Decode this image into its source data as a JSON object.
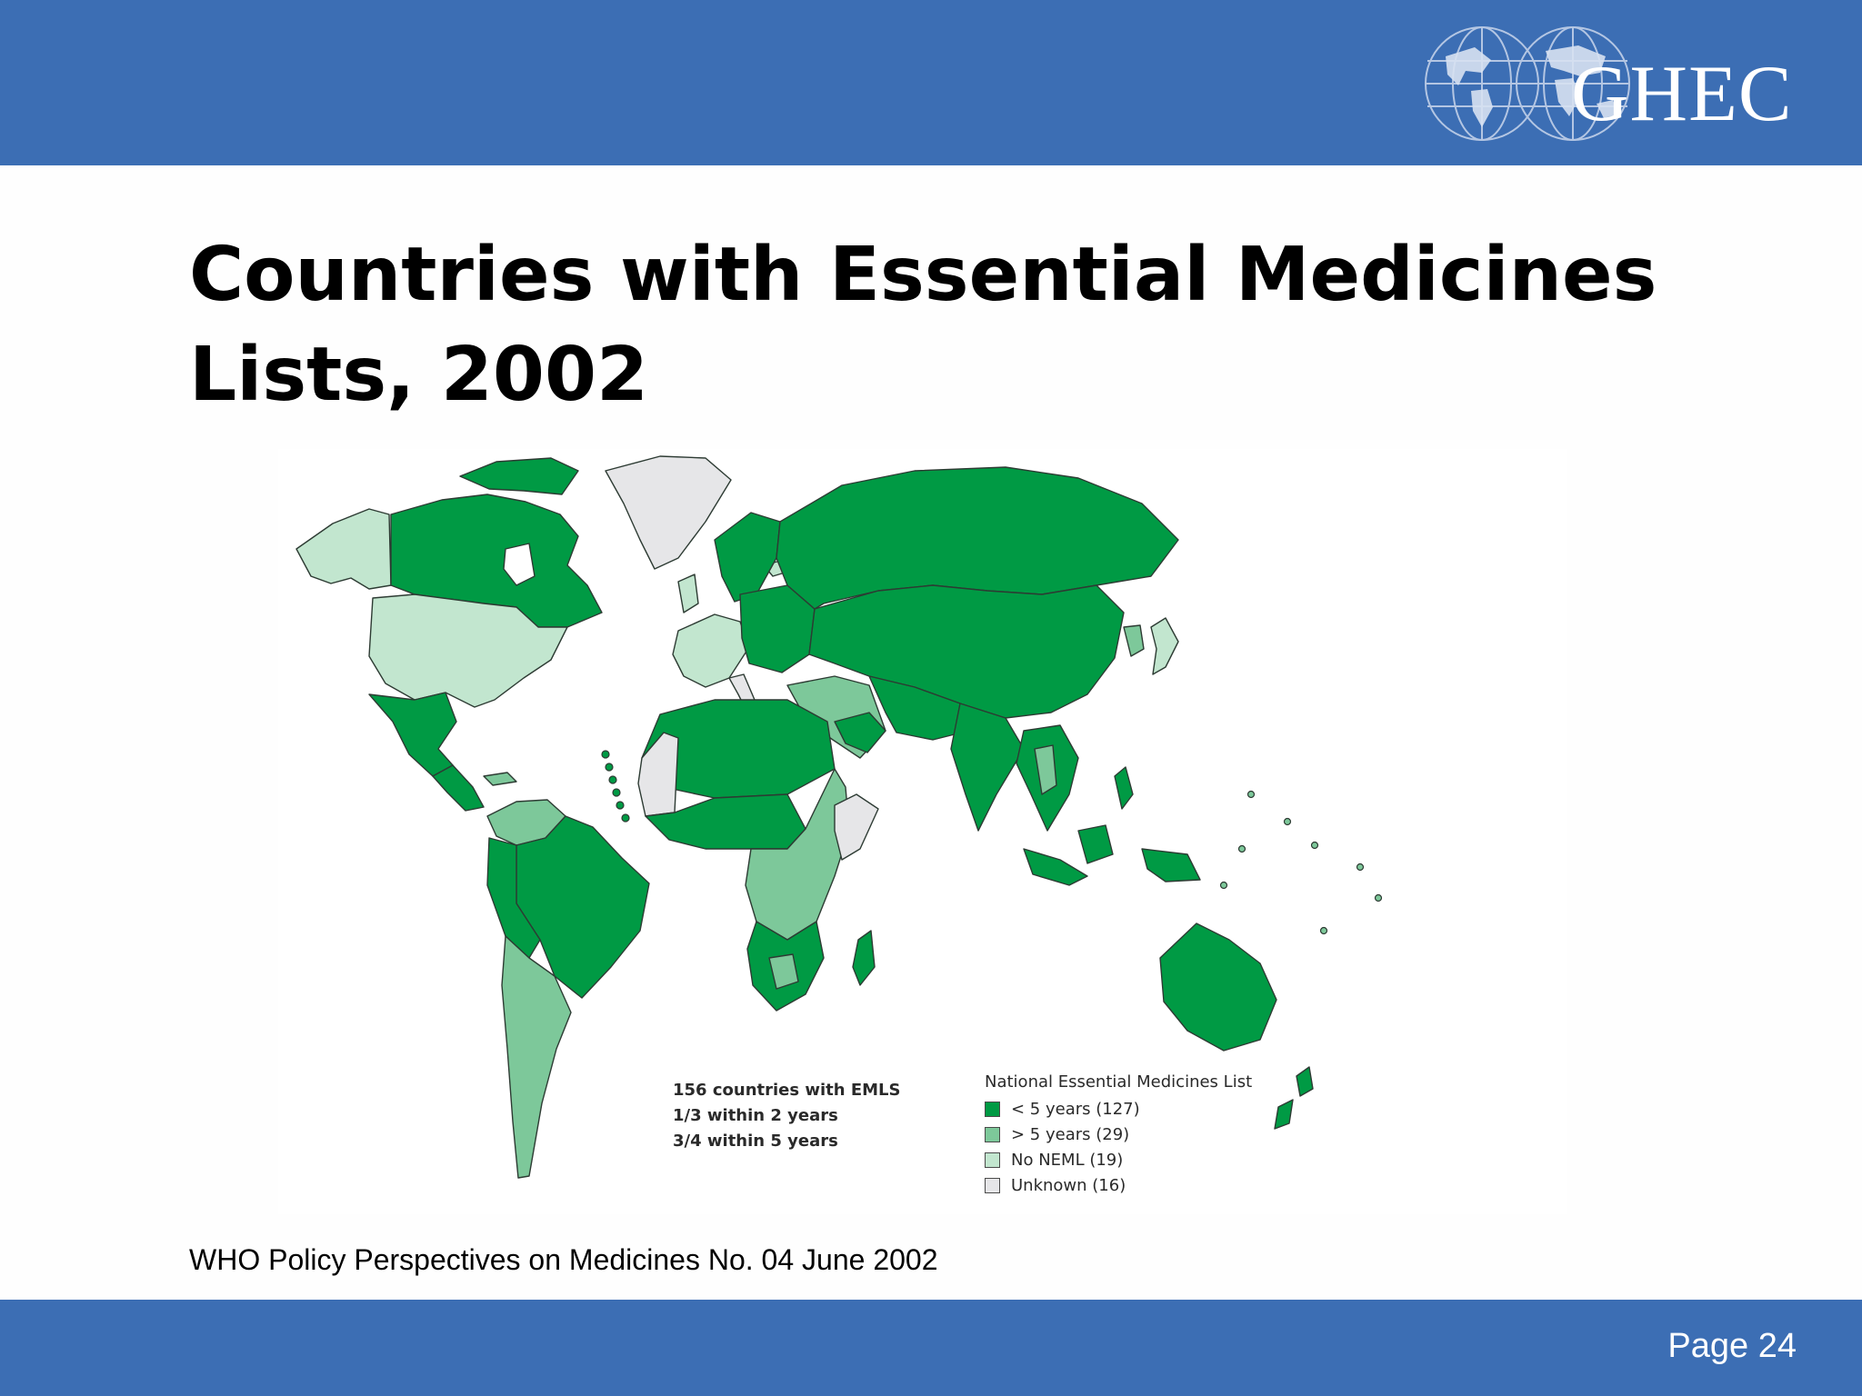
{
  "slide": {
    "logo_text": "GHEC",
    "logo_icon": "globe-grid-icon",
    "title": "Countries with Essential Medicines Lists, 2002",
    "source": "WHO Policy Perspectives on Medicines No. 04 June 2002",
    "page": "Page 24",
    "band_color": "#3c6eb4"
  },
  "map": {
    "stats": [
      "156 countries with EMLS",
      "1/3 within 2 years",
      "3/4 within 5 years"
    ],
    "legend": {
      "title": "National Essential Medicines List",
      "items": [
        {
          "label": "< 5 years (127)",
          "color": "#009a44"
        },
        {
          "label": "> 5 years (29)",
          "color": "#7dc89a"
        },
        {
          "label": "No NEML (19)",
          "color": "#c2e6cf"
        },
        {
          "label": "Unknown (16)",
          "color": "#e6e6e8"
        }
      ]
    }
  }
}
